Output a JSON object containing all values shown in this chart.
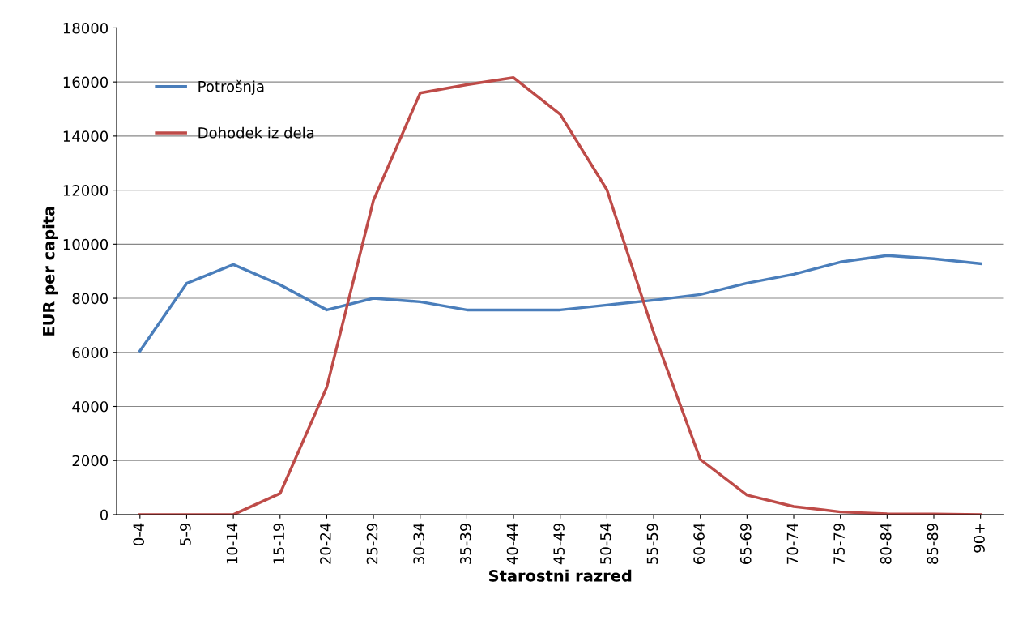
{
  "chart_data": {
    "type": "line",
    "xlabel": "Starostni razred",
    "ylabel": "EUR per capita",
    "categories": [
      "0-4",
      "5-9",
      "10-14",
      "15-19",
      "20-24",
      "25-29",
      "30-34",
      "35-39",
      "40-44",
      "45-49",
      "50-54",
      "55-59",
      "60-64",
      "65-69",
      "70-74",
      "75-79",
      "80-84",
      "85-89",
      "90+"
    ],
    "series": [
      {
        "name": "Potrošnja",
        "color": "#4a7ebb",
        "values": [
          6050,
          8550,
          9250,
          8500,
          7570,
          8000,
          7870,
          7570,
          7570,
          7570,
          7750,
          7930,
          8140,
          8560,
          8890,
          9340,
          9580,
          9460,
          9280
        ]
      },
      {
        "name": "Dohodek iz dela",
        "color": "#be4b48",
        "values": [
          0,
          0,
          0,
          780,
          4710,
          11620,
          15590,
          15900,
          16160,
          14800,
          12010,
          6730,
          2040,
          720,
          300,
          100,
          30,
          20,
          0
        ]
      }
    ],
    "ylim": [
      0,
      18000
    ],
    "yticks": [
      0,
      2000,
      4000,
      6000,
      8000,
      10000,
      12000,
      14000,
      16000,
      18000
    ],
    "grid": "y",
    "legend": "top left",
    "marker": "none",
    "line_style": "solid"
  }
}
